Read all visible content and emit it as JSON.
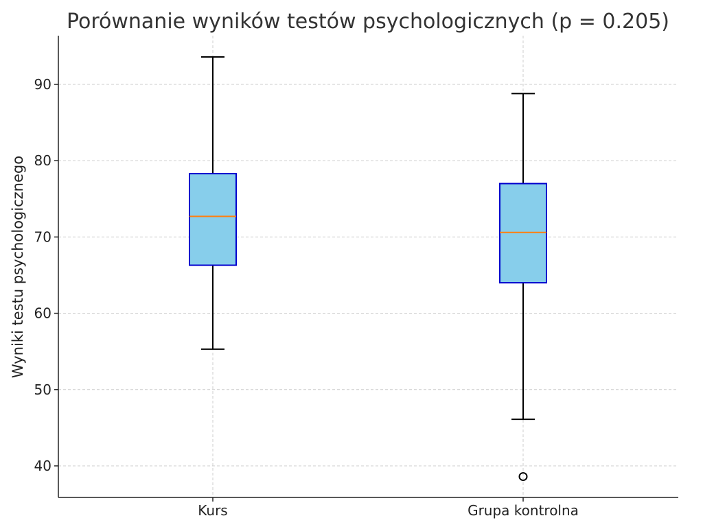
{
  "chart_data": {
    "type": "box",
    "title": "Porównanie wyników testów psychologicznych (p = 0.205)",
    "xlabel": "",
    "ylabel": "Wyniki testu psychologicznego",
    "ylim": [
      36,
      96
    ],
    "yticks": [
      40,
      50,
      60,
      70,
      80,
      90
    ],
    "grid": true,
    "colors": {
      "box_fill": "#87ceeb",
      "box_edge": "#0000cd",
      "median": "#ff7f0e",
      "whisker": "#000000"
    },
    "categories": [
      "Kurs",
      "Grupa kontrolna"
    ],
    "boxes": [
      {
        "label": "Kurs",
        "whislo": 55.3,
        "q1": 66.3,
        "med": 72.7,
        "q3": 78.3,
        "whishi": 93.6,
        "fliers": []
      },
      {
        "label": "Grupa kontrolna",
        "whislo": 46.1,
        "q1": 64.0,
        "med": 70.6,
        "q3": 77.0,
        "whishi": 88.8,
        "fliers": [
          38.6
        ]
      }
    ]
  }
}
